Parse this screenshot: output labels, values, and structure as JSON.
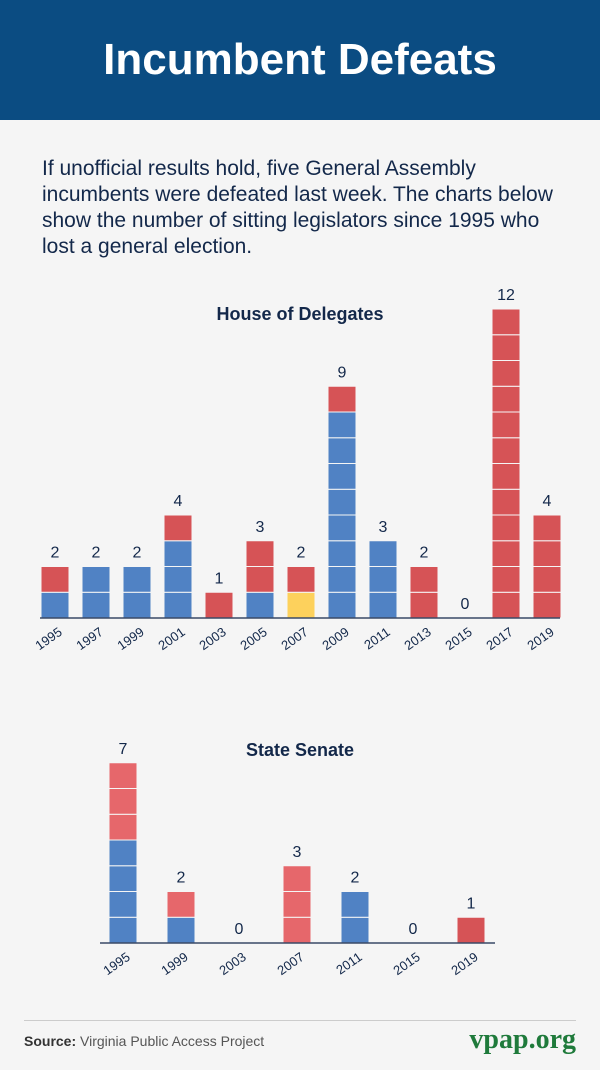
{
  "header": {
    "title": "Incumbent Defeats"
  },
  "intro": "If unofficial results hold, five General Assembly incumbents were defeated last week. The charts below show the number of sitting legislators since 1995 who lost a general election.",
  "colors": {
    "blue": "#5082c4",
    "red": "#d65356",
    "light_red": "#e6676b",
    "yellow": "#fdd15c",
    "header": "#0b4c82",
    "brand": "#1f7a3b"
  },
  "chart_data": [
    {
      "type": "bar",
      "stacked": true,
      "title": "House of Delegates",
      "categories": [
        "1995",
        "1997",
        "1999",
        "2001",
        "2003",
        "2005",
        "2007",
        "2009",
        "2011",
        "2013",
        "2015",
        "2017",
        "2019"
      ],
      "series": [
        {
          "color": "blue",
          "values": [
            1,
            2,
            2,
            3,
            0,
            1,
            0,
            8,
            3,
            0,
            0,
            0,
            0
          ]
        },
        {
          "color": "yellow",
          "values": [
            0,
            0,
            0,
            0,
            0,
            0,
            1,
            0,
            0,
            0,
            0,
            0,
            0
          ]
        },
        {
          "color": "red",
          "values": [
            1,
            0,
            0,
            1,
            1,
            2,
            1,
            1,
            0,
            2,
            0,
            12,
            4
          ]
        }
      ],
      "totals": [
        2,
        2,
        2,
        4,
        1,
        3,
        2,
        9,
        3,
        2,
        0,
        12,
        4
      ]
    },
    {
      "type": "bar",
      "stacked": true,
      "title": "State Senate",
      "categories": [
        "1995",
        "1999",
        "2003",
        "2007",
        "2011",
        "2015",
        "2019"
      ],
      "series": [
        {
          "color": "blue",
          "values": [
            4,
            1,
            0,
            0,
            2,
            0,
            0
          ]
        },
        {
          "color": "light_red",
          "values": [
            3,
            1,
            0,
            3,
            0,
            0,
            0
          ]
        },
        {
          "color": "red",
          "values": [
            0,
            0,
            0,
            0,
            0,
            0,
            1
          ]
        }
      ],
      "totals": [
        7,
        2,
        0,
        3,
        2,
        0,
        1
      ]
    }
  ],
  "footer": {
    "source_label": "Source:",
    "source": "Virginia Public Access Project",
    "brand": "vpap.org"
  }
}
